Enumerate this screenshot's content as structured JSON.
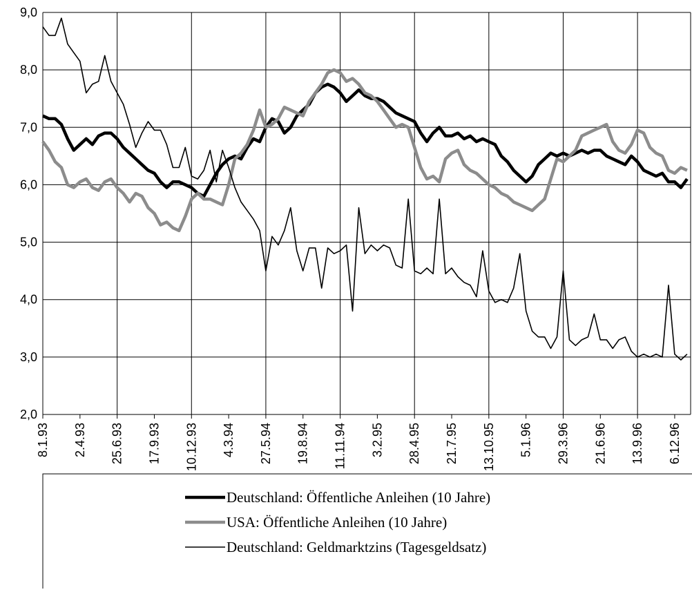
{
  "chart_data": {
    "type": "line",
    "categories": [
      "8.1.93",
      null,
      null,
      null,
      null,
      null,
      "2.4.93",
      null,
      null,
      null,
      null,
      null,
      "25.6.93",
      null,
      null,
      null,
      null,
      null,
      "17.9.93",
      null,
      null,
      null,
      null,
      null,
      "10.12.93",
      null,
      null,
      null,
      null,
      null,
      "4.3.94",
      null,
      null,
      null,
      null,
      null,
      "27.5.94",
      null,
      null,
      null,
      null,
      null,
      "19.8.94",
      null,
      null,
      null,
      null,
      null,
      "11.11.94",
      null,
      null,
      null,
      null,
      null,
      "3.2.95",
      null,
      null,
      null,
      null,
      null,
      "28.4.95",
      null,
      null,
      null,
      null,
      null,
      "21.7.95",
      null,
      null,
      null,
      null,
      null,
      "13.10.95",
      null,
      null,
      null,
      null,
      null,
      "5.1.96",
      null,
      null,
      null,
      null,
      null,
      "29.3.96",
      null,
      null,
      null,
      null,
      null,
      "21.6.96",
      null,
      null,
      null,
      null,
      null,
      "13.9.96",
      null,
      null,
      null,
      null,
      null,
      "6.12.96",
      null,
      null
    ],
    "series": [
      {
        "name": "Deutschland: Öffentliche Anleihen (10 Jahre)",
        "color": "#000000",
        "values": [
          7.2,
          7.15,
          7.15,
          7.05,
          6.8,
          6.6,
          6.7,
          6.8,
          6.7,
          6.85,
          6.9,
          6.9,
          6.8,
          6.65,
          6.55,
          6.45,
          6.35,
          6.25,
          6.2,
          6.05,
          5.95,
          6.05,
          6.05,
          6.0,
          5.95,
          5.85,
          5.8,
          6.0,
          6.2,
          6.35,
          6.45,
          6.5,
          6.45,
          6.65,
          6.8,
          6.75,
          7.0,
          7.15,
          7.1,
          6.9,
          7.0,
          7.2,
          7.3,
          7.4,
          7.6,
          7.7,
          7.75,
          7.7,
          7.6,
          7.45,
          7.55,
          7.65,
          7.55,
          7.5,
          7.5,
          7.45,
          7.35,
          7.25,
          7.2,
          7.15,
          7.1,
          6.9,
          6.75,
          6.9,
          7.0,
          6.85,
          6.85,
          6.9,
          6.8,
          6.85,
          6.75,
          6.8,
          6.75,
          6.7,
          6.5,
          6.4,
          6.25,
          6.15,
          6.05,
          6.15,
          6.35,
          6.45,
          6.55,
          6.5,
          6.55,
          6.5,
          6.55,
          6.6,
          6.55,
          6.6,
          6.6,
          6.5,
          6.45,
          6.4,
          6.35,
          6.5,
          6.4,
          6.25,
          6.2,
          6.15,
          6.2,
          6.05,
          6.05,
          5.95,
          6.1
        ]
      },
      {
        "name": "USA: Öffentliche Anleihen (10 Jahre)",
        "color": "#8c8c8c",
        "values": [
          6.75,
          6.6,
          6.4,
          6.3,
          6.0,
          5.95,
          6.05,
          6.1,
          5.95,
          5.9,
          6.05,
          6.1,
          5.95,
          5.85,
          5.7,
          5.85,
          5.8,
          5.6,
          5.5,
          5.3,
          5.35,
          5.25,
          5.2,
          5.45,
          5.75,
          5.85,
          5.75,
          5.75,
          5.7,
          5.65,
          6.0,
          6.45,
          6.55,
          6.7,
          6.95,
          7.3,
          7.0,
          7.05,
          7.15,
          7.35,
          7.3,
          7.25,
          7.2,
          7.45,
          7.6,
          7.75,
          7.95,
          8.0,
          7.95,
          7.8,
          7.85,
          7.75,
          7.6,
          7.55,
          7.45,
          7.3,
          7.15,
          7.0,
          7.05,
          7.0,
          6.65,
          6.3,
          6.1,
          6.15,
          6.05,
          6.45,
          6.55,
          6.6,
          6.35,
          6.25,
          6.2,
          6.1,
          6.0,
          5.95,
          5.85,
          5.8,
          5.7,
          5.65,
          5.6,
          5.55,
          5.65,
          5.75,
          6.1,
          6.45,
          6.4,
          6.5,
          6.6,
          6.85,
          6.9,
          6.95,
          7.0,
          7.05,
          6.75,
          6.6,
          6.55,
          6.7,
          6.95,
          6.9,
          6.65,
          6.55,
          6.5,
          6.25,
          6.2,
          6.3,
          6.25
        ]
      },
      {
        "name": "Deutschland: Geldmarktzins (Tagesgeldsatz)",
        "color": "#000000",
        "values": [
          8.75,
          8.6,
          8.6,
          8.9,
          8.45,
          8.3,
          8.15,
          7.6,
          7.75,
          7.8,
          8.25,
          7.8,
          7.6,
          7.4,
          7.05,
          6.65,
          6.9,
          7.1,
          6.95,
          6.95,
          6.7,
          6.3,
          6.3,
          6.65,
          6.15,
          6.1,
          6.25,
          6.6,
          6.05,
          6.6,
          6.3,
          5.95,
          5.7,
          5.55,
          5.4,
          5.2,
          4.5,
          5.1,
          4.95,
          5.2,
          5.6,
          4.85,
          4.5,
          4.9,
          4.9,
          4.2,
          4.9,
          4.8,
          4.85,
          4.95,
          3.8,
          5.6,
          4.8,
          4.95,
          4.85,
          4.95,
          4.9,
          4.6,
          4.55,
          5.75,
          4.5,
          4.45,
          4.55,
          4.45,
          5.75,
          4.45,
          4.55,
          4.4,
          4.3,
          4.25,
          4.05,
          4.85,
          4.15,
          3.95,
          4.0,
          3.95,
          4.2,
          4.8,
          3.8,
          3.45,
          3.35,
          3.35,
          3.15,
          3.35,
          4.5,
          3.3,
          3.2,
          3.3,
          3.35,
          3.75,
          3.3,
          3.3,
          3.15,
          3.3,
          3.35,
          3.1,
          3.0,
          3.05,
          3.0,
          3.05,
          3.0,
          4.25,
          3.05,
          2.95,
          3.05
        ]
      }
    ],
    "ylim": [
      2,
      9
    ],
    "yticks": [
      {
        "value": 2,
        "label": "2,0"
      },
      {
        "value": 3,
        "label": "3,0"
      },
      {
        "value": 4,
        "label": "4,0"
      },
      {
        "value": 5,
        "label": "5,0"
      },
      {
        "value": 6,
        "label": "6,0"
      },
      {
        "value": 7,
        "label": "7,0"
      },
      {
        "value": 8,
        "label": "8,0"
      },
      {
        "value": 9,
        "label": "9,0"
      }
    ],
    "grid": true,
    "legend": "bottom"
  }
}
